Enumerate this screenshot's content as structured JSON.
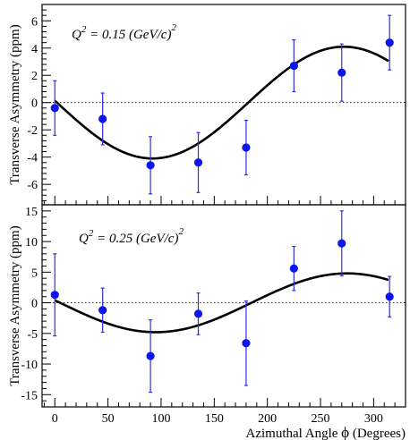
{
  "chart_data": {
    "type": "scatter",
    "x_label": "Azimuthal Angle",
    "x_symbol": "ϕ",
    "x_unit": "(Degrees)",
    "x_ticks": [
      0,
      50,
      100,
      150,
      200,
      250,
      300
    ],
    "xlim": [
      -12,
      330
    ],
    "panels": [
      {
        "annotation_q": "Q",
        "annotation_sup": "2",
        "annotation_value": " = 0.15 (GeV/c)",
        "annotation_value_sup": "2",
        "ylabel": "Transverse Asymmetry (ppm)",
        "ylim": [
          -7.5,
          7.2
        ],
        "y_ticks": [
          -6,
          -4,
          -2,
          0,
          2,
          4,
          6
        ],
        "grid": false,
        "series": [
          {
            "x": [
              0,
              45,
              90,
              135,
              180,
              225,
              270,
              315
            ],
            "y": [
              -0.4,
              -1.2,
              -4.6,
              -4.4,
              -3.3,
              2.7,
              2.2,
              4.4
            ],
            "err": [
              2.0,
              1.9,
              2.1,
              2.2,
              2.0,
              1.9,
              2.1,
              2.0
            ]
          }
        ],
        "fit": {
          "amplitude": 4.1,
          "phase_deg": 2
        },
        "marker_color": "#0b16ee",
        "error_color": "#2f2fe0"
      },
      {
        "annotation_q": "Q",
        "annotation_sup": "2",
        "annotation_value": " = 0.25 (GeV/c)",
        "annotation_value_sup": "2",
        "ylabel": "Transverse Asymmetry (ppm)",
        "ylim": [
          -17,
          16
        ],
        "y_ticks": [
          -15,
          -10,
          -5,
          0,
          5,
          10,
          15
        ],
        "grid": false,
        "series": [
          {
            "x": [
              0,
              45,
              90,
              135,
              180,
              225,
              270,
              315
            ],
            "y": [
              1.3,
              -1.2,
              -8.7,
              -1.8,
              -6.6,
              5.6,
              9.7,
              1.0
            ],
            "err": [
              6.7,
              3.6,
              5.9,
              3.4,
              6.9,
              3.6,
              5.3,
              3.3
            ]
          }
        ],
        "fit": {
          "amplitude": 4.8,
          "phase_deg": 5
        },
        "marker_color": "#0b16ee",
        "error_color": "#2f2fe0"
      }
    ]
  }
}
